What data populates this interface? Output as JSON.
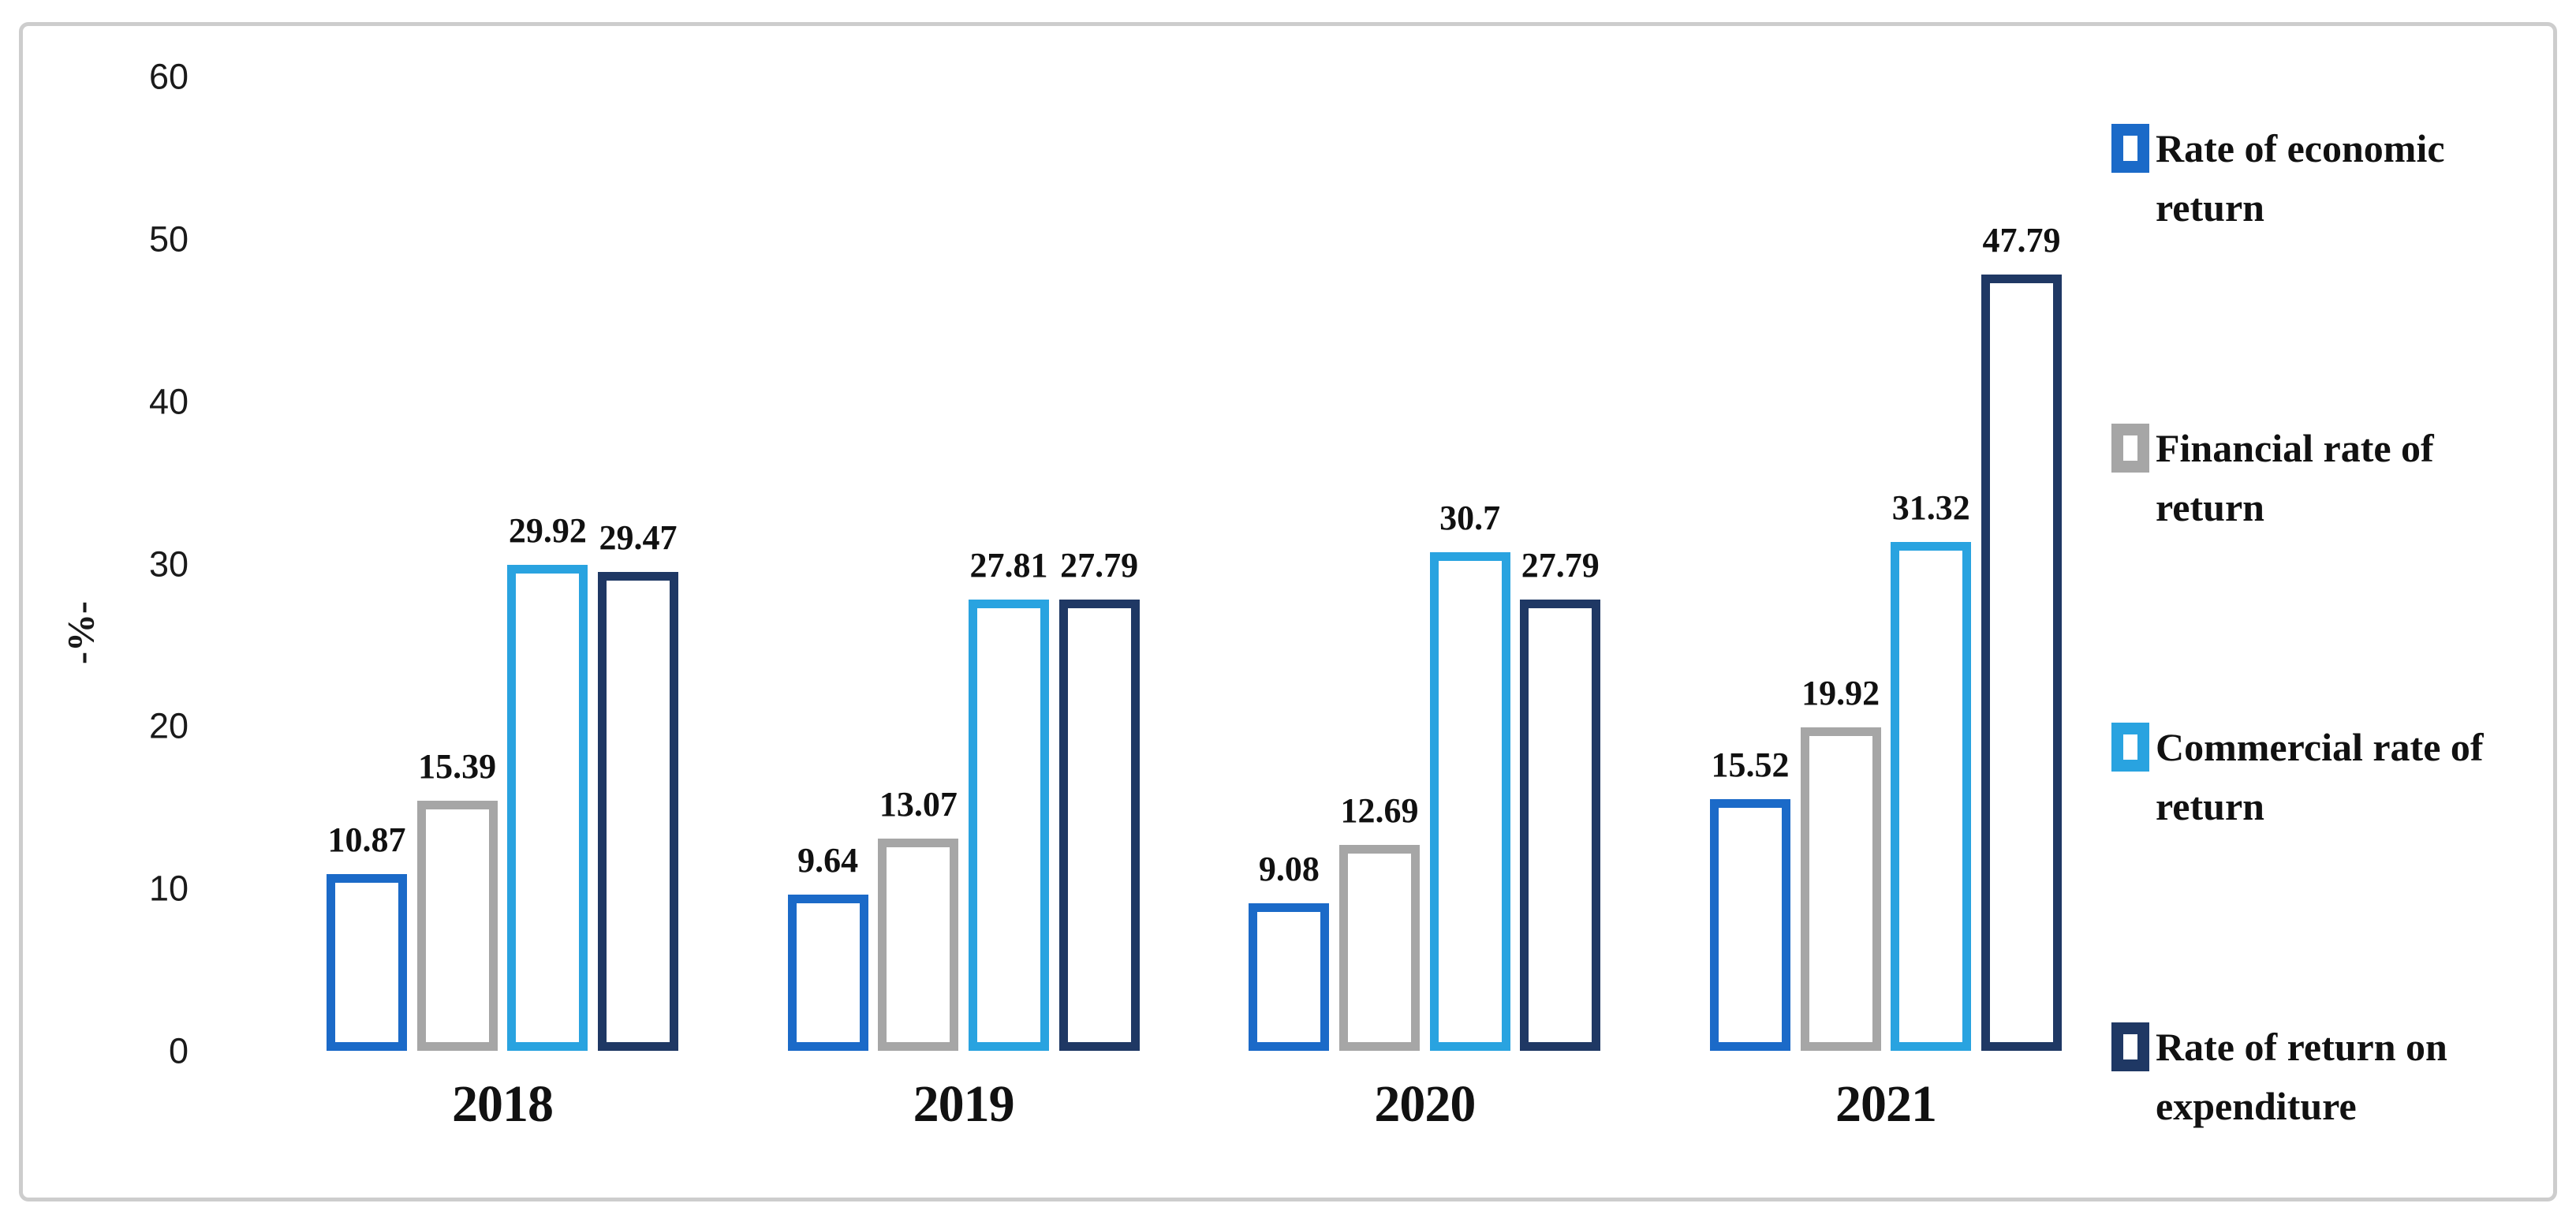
{
  "y_axis": {
    "title": "-%-"
  },
  "chart_data": {
    "type": "bar",
    "title": "",
    "categories": [
      "2018",
      "2019",
      "2020",
      "2021"
    ],
    "series": [
      {
        "name": "Rate of economic return",
        "color": "#1b6ac8",
        "values": [
          10.87,
          9.64,
          9.08,
          15.52
        ],
        "labels": [
          "10.87",
          "9.64",
          "9.08",
          "15.52"
        ]
      },
      {
        "name": "Financial rate of return",
        "color": "#a6a6a6",
        "values": [
          15.39,
          13.07,
          12.69,
          19.92
        ],
        "labels": [
          "15.39",
          "13.07",
          "12.69",
          "19.92"
        ]
      },
      {
        "name": "Commercial rate of return",
        "color": "#29a3e0",
        "values": [
          29.92,
          27.81,
          30.7,
          31.32
        ],
        "labels": [
          "29.92",
          "27.81",
          "30.7",
          "31.32"
        ]
      },
      {
        "name": "Rate of return on expenditure",
        "color": "#1f3864",
        "values": [
          29.47,
          27.79,
          27.79,
          47.79
        ],
        "labels": [
          "29.47",
          "27.79",
          "27.79",
          "47.79"
        ]
      }
    ],
    "xlabel": "",
    "ylabel": "-%-",
    "ylim": [
      0,
      60
    ],
    "yticks": [
      0,
      10,
      20,
      30,
      40,
      50,
      60
    ],
    "grid": false,
    "bar_style": "hollow-outline",
    "legend_position": "right",
    "legend_marker": "hollow-square"
  }
}
